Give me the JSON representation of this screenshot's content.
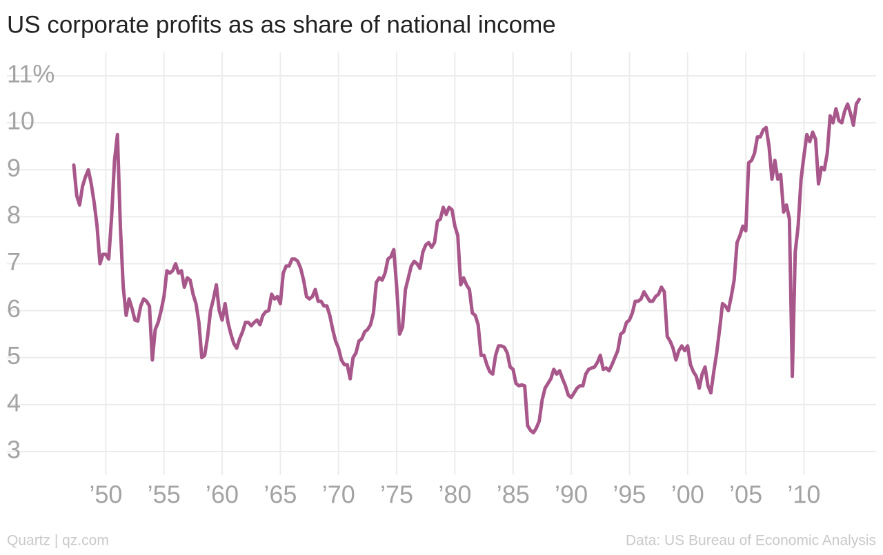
{
  "chart_data": {
    "type": "line",
    "title": "US corporate profits as as share of national income",
    "source_left": "Quartz | qz.com",
    "source_right": "Data: US Bureau of Economic Analysis",
    "color": "#a8578b",
    "grid": true,
    "xlim": [
      1941.5,
      2016.2
    ],
    "ylim": [
      2.5,
      11.5
    ],
    "yticks": [
      {
        "value": 11,
        "label": "11%"
      },
      10,
      9,
      8,
      7,
      6,
      5,
      4,
      3
    ],
    "xticks": [
      {
        "value": 1950,
        "label": "’50"
      },
      {
        "value": 1955,
        "label": "’55"
      },
      {
        "value": 1960,
        "label": "’60"
      },
      {
        "value": 1965,
        "label": "’65"
      },
      {
        "value": 1970,
        "label": "’70"
      },
      {
        "value": 1975,
        "label": "’75"
      },
      {
        "value": 1980,
        "label": "’80"
      },
      {
        "value": 1985,
        "label": "’85"
      },
      {
        "value": 1990,
        "label": "’90"
      },
      {
        "value": 1995,
        "label": "’95"
      },
      {
        "value": 2000,
        "label": "’00"
      },
      {
        "value": 2005,
        "label": "’05"
      },
      {
        "value": 2010,
        "label": "’10"
      }
    ],
    "x": [
      1947.25,
      1947.5,
      1947.75,
      1948,
      1948.25,
      1948.5,
      1948.75,
      1949,
      1949.25,
      1949.5,
      1949.75,
      1950,
      1950.25,
      1950.5,
      1950.75,
      1951,
      1951.25,
      1951.5,
      1951.75,
      1952,
      1952.25,
      1952.5,
      1952.75,
      1953,
      1953.25,
      1953.5,
      1953.75,
      1954,
      1954.25,
      1954.5,
      1954.75,
      1955,
      1955.25,
      1955.5,
      1955.75,
      1956,
      1956.25,
      1956.5,
      1956.75,
      1957,
      1957.25,
      1957.5,
      1957.75,
      1958,
      1958.25,
      1958.5,
      1958.75,
      1959,
      1959.25,
      1959.5,
      1959.75,
      1960,
      1960.25,
      1960.5,
      1960.75,
      1961,
      1961.25,
      1961.5,
      1961.75,
      1962,
      1962.25,
      1962.5,
      1962.75,
      1963,
      1963.25,
      1963.5,
      1963.75,
      1964,
      1964.25,
      1964.5,
      1964.75,
      1965,
      1965.25,
      1965.5,
      1965.75,
      1966,
      1966.25,
      1966.5,
      1966.75,
      1967,
      1967.25,
      1967.5,
      1967.75,
      1968,
      1968.25,
      1968.5,
      1968.75,
      1969,
      1969.25,
      1969.5,
      1969.75,
      1970,
      1970.25,
      1970.5,
      1970.75,
      1971,
      1971.25,
      1971.5,
      1971.75,
      1972,
      1972.25,
      1972.5,
      1972.75,
      1973,
      1973.25,
      1973.5,
      1973.75,
      1974,
      1974.25,
      1974.5,
      1974.75,
      1975,
      1975.25,
      1975.5,
      1975.75,
      1976,
      1976.25,
      1976.5,
      1976.75,
      1977,
      1977.25,
      1977.5,
      1977.75,
      1978,
      1978.25,
      1978.5,
      1978.75,
      1979,
      1979.25,
      1979.5,
      1979.75,
      1980,
      1980.25,
      1980.5,
      1980.75,
      1981,
      1981.25,
      1981.5,
      1981.75,
      1982,
      1982.25,
      1982.5,
      1982.75,
      1983,
      1983.25,
      1983.5,
      1983.75,
      1984,
      1984.25,
      1984.5,
      1984.75,
      1985,
      1985.25,
      1985.5,
      1985.75,
      1986,
      1986.25,
      1986.5,
      1986.75,
      1987,
      1987.25,
      1987.5,
      1987.75,
      1988,
      1988.25,
      1988.5,
      1988.75,
      1989,
      1989.25,
      1989.5,
      1989.75,
      1990,
      1990.25,
      1990.5,
      1990.75,
      1991,
      1991.25,
      1991.5,
      1991.75,
      1992,
      1992.25,
      1992.5,
      1992.75,
      1993,
      1993.25,
      1993.5,
      1993.75,
      1994,
      1994.25,
      1994.5,
      1994.75,
      1995,
      1995.25,
      1995.5,
      1995.75,
      1996,
      1996.25,
      1996.5,
      1996.75,
      1997,
      1997.25,
      1997.5,
      1997.75,
      1998,
      1998.25,
      1998.5,
      1998.75,
      1999,
      1999.25,
      1999.5,
      1999.75,
      2000,
      2000.25,
      2000.5,
      2000.75,
      2001,
      2001.25,
      2001.5,
      2001.75,
      2002,
      2002.25,
      2002.5,
      2002.75,
      2003,
      2003.25,
      2003.5,
      2003.75,
      2004,
      2004.25,
      2004.5,
      2004.75,
      2005,
      2005.25,
      2005.5,
      2005.75,
      2006,
      2006.25,
      2006.5,
      2006.75,
      2007,
      2007.25,
      2007.5,
      2007.75,
      2008,
      2008.25,
      2008.5,
      2008.75,
      2009,
      2009.25,
      2009.5,
      2009.75,
      2010,
      2010.25,
      2010.5,
      2010.75,
      2011,
      2011.25,
      2011.5,
      2011.75,
      2012,
      2012.25,
      2012.5,
      2012.75,
      2013,
      2013.25,
      2013.5,
      2013.75,
      2014,
      2014.25,
      2014.5,
      2014.75
    ],
    "values": [
      9.1,
      8.45,
      8.25,
      8.65,
      8.85,
      9.0,
      8.7,
      8.3,
      7.8,
      7.0,
      7.2,
      7.2,
      7.1,
      8.0,
      9.2,
      9.75,
      7.8,
      6.5,
      5.9,
      6.25,
      6.05,
      5.8,
      5.78,
      6.1,
      6.25,
      6.2,
      6.1,
      4.95,
      5.6,
      5.75,
      6.0,
      6.3,
      6.85,
      6.8,
      6.85,
      7.0,
      6.8,
      6.85,
      6.5,
      6.7,
      6.65,
      6.35,
      6.15,
      5.75,
      5.0,
      5.05,
      5.45,
      6.0,
      6.25,
      6.55,
      6.0,
      5.8,
      6.15,
      5.75,
      5.5,
      5.3,
      5.2,
      5.4,
      5.55,
      5.75,
      5.75,
      5.68,
      5.75,
      5.8,
      5.7,
      5.9,
      5.98,
      6.0,
      6.35,
      6.25,
      6.3,
      6.15,
      6.8,
      6.95,
      6.95,
      7.1,
      7.1,
      7.05,
      6.9,
      6.65,
      6.3,
      6.25,
      6.3,
      6.45,
      6.2,
      6.2,
      6.1,
      6.1,
      5.9,
      5.6,
      5.35,
      5.2,
      4.95,
      4.85,
      4.85,
      4.55,
      5.0,
      5.1,
      5.35,
      5.4,
      5.55,
      5.6,
      5.7,
      5.95,
      6.6,
      6.7,
      6.65,
      6.8,
      7.1,
      7.15,
      7.3,
      6.5,
      5.5,
      5.65,
      6.45,
      6.7,
      6.95,
      7.05,
      7.0,
      6.9,
      7.25,
      7.4,
      7.45,
      7.35,
      7.45,
      7.9,
      7.95,
      8.2,
      8.05,
      8.2,
      8.15,
      7.8,
      7.6,
      6.55,
      6.7,
      6.55,
      6.45,
      5.95,
      5.9,
      5.7,
      5.05,
      5.05,
      4.85,
      4.7,
      4.65,
      5.05,
      5.25,
      5.25,
      5.22,
      5.1,
      4.8,
      4.75,
      4.45,
      4.4,
      4.42,
      4.4,
      3.55,
      3.45,
      3.4,
      3.5,
      3.65,
      4.1,
      4.35,
      4.45,
      4.55,
      4.75,
      4.65,
      4.72,
      4.55,
      4.4,
      4.2,
      4.15,
      4.25,
      4.35,
      4.4,
      4.4,
      4.65,
      4.75,
      4.78,
      4.8,
      4.9,
      5.05,
      4.75,
      4.78,
      4.72,
      4.85,
      5.0,
      5.15,
      5.5,
      5.55,
      5.75,
      5.8,
      5.95,
      6.2,
      6.2,
      6.25,
      6.4,
      6.3,
      6.2,
      6.2,
      6.3,
      6.35,
      6.5,
      6.4,
      5.45,
      5.35,
      5.2,
      4.95,
      5.15,
      5.25,
      5.15,
      5.25,
      4.85,
      4.7,
      4.6,
      4.35,
      4.65,
      4.8,
      4.4,
      4.25,
      4.7,
      5.1,
      5.6,
      6.15,
      6.1,
      6.0,
      6.3,
      6.65,
      7.45,
      7.6,
      7.8,
      7.7,
      9.15,
      9.2,
      9.35,
      9.7,
      9.7,
      9.85,
      9.9,
      9.5,
      8.8,
      9.2,
      8.8,
      8.9,
      8.1,
      8.25,
      7.95,
      4.6,
      7.25,
      7.8,
      8.8,
      9.3,
      9.75,
      9.6,
      9.8,
      9.65,
      8.7,
      9.05,
      9.0,
      9.35,
      10.15,
      10.0,
      10.3,
      10.05,
      10.0,
      10.25,
      10.4,
      10.2,
      9.95,
      10.4,
      10.5
    ]
  }
}
